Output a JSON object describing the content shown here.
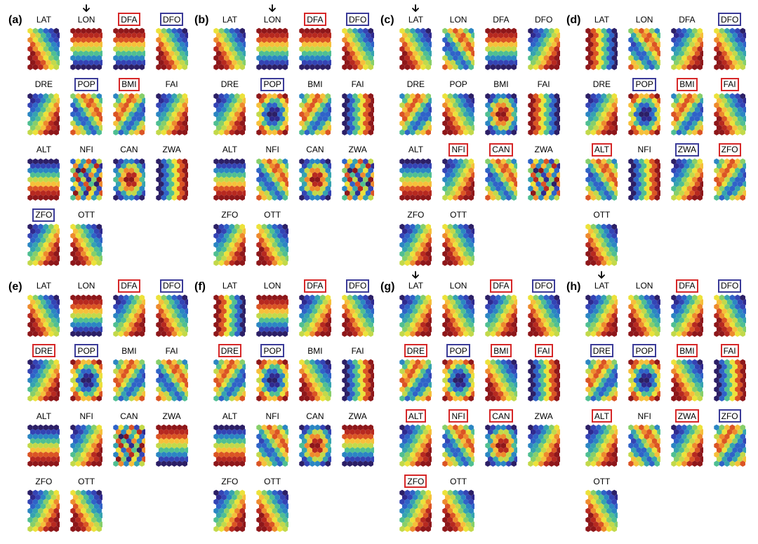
{
  "figure_type": "small-multiples-SOM-component-planes",
  "grid": {
    "panels_cols": 4,
    "panels_rows": 2,
    "cells_cols": 4,
    "cells_rows": 4
  },
  "hex_grid": {
    "cols": 6,
    "rows": 9,
    "hex_radius": 4.3,
    "dx": 7.45,
    "dy": 6.45,
    "odd_row_offset": 3.72
  },
  "palette": [
    "#2c1f66",
    "#2f2a8f",
    "#3444b5",
    "#2f63c8",
    "#2b86c3",
    "#35a3b0",
    "#4fbf92",
    "#86cf6a",
    "#c2d94a",
    "#ece23a",
    "#f6c03a",
    "#ee8a2d",
    "#db5424",
    "#b72920",
    "#8e171a"
  ],
  "background_color": "#ffffff",
  "label_fontsize": 12,
  "panel_label_fontsize": 16,
  "box_colors": {
    "red": "#d62728",
    "blue": "#3b3b98"
  },
  "var_names": [
    "LAT",
    "LON",
    "DFA",
    "DFO",
    "DRE",
    "POP",
    "BMI",
    "FAI",
    "ALT",
    "NFI",
    "CAN",
    "ZWA",
    "ZFO",
    "OTT"
  ],
  "patterns": {
    "diag_lr": [
      0,
      2,
      3,
      5,
      7,
      9,
      1,
      2,
      4,
      6,
      8,
      10,
      2,
      3,
      5,
      7,
      9,
      11,
      3,
      4,
      6,
      8,
      10,
      12,
      4,
      5,
      7,
      9,
      11,
      13,
      5,
      6,
      8,
      10,
      12,
      14,
      6,
      7,
      9,
      11,
      13,
      14,
      7,
      8,
      10,
      12,
      13,
      14,
      8,
      9,
      11,
      13,
      14,
      14
    ],
    "diag_rl": [
      9,
      7,
      5,
      3,
      2,
      0,
      10,
      8,
      6,
      4,
      2,
      1,
      11,
      9,
      7,
      5,
      3,
      2,
      12,
      10,
      8,
      6,
      4,
      3,
      13,
      11,
      9,
      7,
      5,
      4,
      14,
      12,
      10,
      8,
      6,
      5,
      14,
      13,
      11,
      9,
      7,
      6,
      14,
      13,
      12,
      10,
      8,
      7,
      14,
      14,
      13,
      11,
      9,
      8
    ],
    "vert_lr": [
      0,
      3,
      6,
      9,
      12,
      14,
      0,
      3,
      6,
      9,
      12,
      14,
      0,
      3,
      6,
      9,
      12,
      14,
      0,
      3,
      6,
      9,
      12,
      14,
      0,
      3,
      6,
      9,
      12,
      14,
      0,
      3,
      6,
      9,
      12,
      14,
      0,
      3,
      6,
      9,
      12,
      14,
      0,
      3,
      6,
      9,
      12,
      14,
      0,
      3,
      6,
      9,
      12,
      14
    ],
    "vert_rl": [
      14,
      12,
      9,
      6,
      3,
      0,
      14,
      12,
      9,
      6,
      3,
      0,
      14,
      12,
      9,
      6,
      3,
      0,
      14,
      12,
      9,
      6,
      3,
      0,
      14,
      12,
      9,
      6,
      3,
      0,
      14,
      12,
      9,
      6,
      3,
      0,
      14,
      12,
      9,
      6,
      3,
      0,
      14,
      12,
      9,
      6,
      3,
      0,
      14,
      12,
      9,
      6,
      3,
      0
    ],
    "horiz_tb": [
      0,
      0,
      0,
      0,
      0,
      0,
      2,
      2,
      2,
      2,
      2,
      2,
      4,
      4,
      4,
      4,
      4,
      4,
      6,
      6,
      6,
      6,
      6,
      6,
      8,
      8,
      8,
      8,
      8,
      8,
      10,
      10,
      10,
      10,
      10,
      10,
      12,
      12,
      12,
      12,
      12,
      12,
      13,
      13,
      13,
      13,
      13,
      13,
      14,
      14,
      14,
      14,
      14,
      14
    ],
    "horiz_bt": [
      14,
      14,
      14,
      14,
      14,
      14,
      13,
      13,
      13,
      13,
      13,
      13,
      12,
      12,
      12,
      12,
      12,
      12,
      10,
      10,
      10,
      10,
      10,
      10,
      8,
      8,
      8,
      8,
      8,
      8,
      6,
      6,
      6,
      6,
      6,
      6,
      4,
      4,
      4,
      4,
      4,
      4,
      2,
      2,
      2,
      2,
      2,
      2,
      0,
      0,
      0,
      0,
      0,
      0
    ],
    "center_hi": [
      0,
      2,
      4,
      4,
      2,
      0,
      2,
      5,
      8,
      8,
      5,
      2,
      4,
      8,
      11,
      11,
      8,
      4,
      5,
      10,
      13,
      13,
      10,
      5,
      6,
      11,
      14,
      14,
      11,
      6,
      5,
      10,
      13,
      13,
      10,
      5,
      4,
      8,
      11,
      11,
      8,
      4,
      2,
      5,
      8,
      8,
      5,
      2,
      0,
      2,
      4,
      4,
      2,
      0
    ],
    "center_lo": [
      14,
      12,
      10,
      10,
      12,
      14,
      12,
      9,
      6,
      6,
      9,
      12,
      10,
      6,
      3,
      3,
      6,
      10,
      9,
      4,
      1,
      1,
      4,
      9,
      8,
      3,
      0,
      0,
      3,
      8,
      9,
      4,
      1,
      1,
      4,
      9,
      10,
      6,
      3,
      3,
      6,
      10,
      12,
      9,
      6,
      6,
      9,
      12,
      14,
      12,
      10,
      10,
      12,
      14
    ],
    "wave_a": [
      7,
      10,
      12,
      10,
      7,
      4,
      5,
      8,
      11,
      12,
      9,
      6,
      3,
      6,
      9,
      12,
      11,
      8,
      2,
      4,
      7,
      10,
      12,
      10,
      3,
      3,
      5,
      8,
      11,
      12,
      5,
      3,
      3,
      6,
      9,
      12,
      8,
      5,
      3,
      4,
      7,
      10,
      10,
      8,
      5,
      3,
      5,
      8,
      12,
      10,
      8,
      5,
      3,
      6
    ],
    "wave_b": [
      4,
      7,
      10,
      12,
      10,
      7,
      6,
      9,
      12,
      11,
      8,
      5,
      8,
      11,
      12,
      9,
      6,
      3,
      10,
      12,
      10,
      7,
      4,
      2,
      12,
      11,
      8,
      5,
      3,
      3,
      12,
      9,
      6,
      3,
      3,
      5,
      10,
      7,
      4,
      3,
      5,
      8,
      8,
      5,
      3,
      5,
      8,
      10,
      6,
      3,
      5,
      8,
      10,
      12
    ],
    "speckle": [
      3,
      9,
      5,
      12,
      2,
      8,
      11,
      4,
      10,
      6,
      13,
      1,
      7,
      0,
      14,
      5,
      9,
      3,
      12,
      6,
      2,
      11,
      4,
      10,
      5,
      13,
      8,
      1,
      7,
      14,
      9,
      3,
      12,
      6,
      0,
      11,
      4,
      10,
      5,
      13,
      8,
      2,
      14,
      7,
      1,
      9,
      3,
      12,
      6,
      11,
      4,
      10,
      5,
      8
    ]
  },
  "panels": [
    {
      "id": "a",
      "label": "(a)",
      "arrows": [
        {
          "type": "down",
          "target": "LON"
        }
      ],
      "cells": [
        {
          "name": "LAT",
          "pattern": "diag_rl"
        },
        {
          "name": "LON",
          "pattern": "horiz_bt"
        },
        {
          "name": "DFA",
          "pattern": "horiz_bt",
          "box": "red"
        },
        {
          "name": "DFO",
          "pattern": "diag_rl",
          "box": "blue"
        },
        {
          "name": "DRE",
          "pattern": "diag_lr"
        },
        {
          "name": "POP",
          "pattern": "wave_a",
          "box": "blue"
        },
        {
          "name": "BMI",
          "pattern": "wave_b",
          "box": "red"
        },
        {
          "name": "FAI",
          "pattern": "diag_lr"
        },
        {
          "name": "ALT",
          "pattern": "horiz_tb"
        },
        {
          "name": "NFI",
          "pattern": "speckle"
        },
        {
          "name": "CAN",
          "pattern": "center_hi"
        },
        {
          "name": "ZWA",
          "pattern": "vert_lr"
        },
        {
          "name": "ZFO",
          "pattern": "diag_lr",
          "box": "blue"
        },
        {
          "name": "OTT",
          "pattern": "diag_rl"
        }
      ]
    },
    {
      "id": "b",
      "label": "(b)",
      "arrows": [
        {
          "type": "down",
          "target": "LON"
        }
      ],
      "cells": [
        {
          "name": "LAT",
          "pattern": "diag_rl"
        },
        {
          "name": "LON",
          "pattern": "horiz_bt"
        },
        {
          "name": "DFA",
          "pattern": "horiz_bt",
          "box": "red"
        },
        {
          "name": "DFO",
          "pattern": "diag_rl",
          "box": "blue"
        },
        {
          "name": "DRE",
          "pattern": "diag_lr"
        },
        {
          "name": "POP",
          "pattern": "center_lo",
          "box": "blue"
        },
        {
          "name": "BMI",
          "pattern": "wave_b"
        },
        {
          "name": "FAI",
          "pattern": "vert_lr"
        },
        {
          "name": "ALT",
          "pattern": "horiz_tb"
        },
        {
          "name": "NFI",
          "pattern": "wave_a"
        },
        {
          "name": "CAN",
          "pattern": "center_hi"
        },
        {
          "name": "ZWA",
          "pattern": "speckle"
        },
        {
          "name": "ZFO",
          "pattern": "diag_lr"
        },
        {
          "name": "OTT",
          "pattern": "diag_rl"
        }
      ]
    },
    {
      "id": "c",
      "label": "(c)",
      "arrows": [
        {
          "type": "down",
          "target": "LAT"
        }
      ],
      "cells": [
        {
          "name": "LAT",
          "pattern": "diag_rl"
        },
        {
          "name": "LON",
          "pattern": "wave_a"
        },
        {
          "name": "DFA",
          "pattern": "horiz_bt"
        },
        {
          "name": "DFO",
          "pattern": "diag_lr"
        },
        {
          "name": "DRE",
          "pattern": "wave_b"
        },
        {
          "name": "POP",
          "pattern": "diag_rl"
        },
        {
          "name": "BMI",
          "pattern": "center_hi"
        },
        {
          "name": "FAI",
          "pattern": "vert_rl"
        },
        {
          "name": "ALT",
          "pattern": "horiz_tb"
        },
        {
          "name": "NFI",
          "pattern": "diag_lr",
          "box": "red"
        },
        {
          "name": "CAN",
          "pattern": "wave_a",
          "box": "red"
        },
        {
          "name": "ZWA",
          "pattern": "speckle"
        },
        {
          "name": "ZFO",
          "pattern": "diag_lr"
        },
        {
          "name": "OTT",
          "pattern": "diag_rl"
        }
      ]
    },
    {
      "id": "d",
      "label": "(d)",
      "arrows": [],
      "cells": [
        {
          "name": "LAT",
          "pattern": "vert_rl"
        },
        {
          "name": "LON",
          "pattern": "wave_a"
        },
        {
          "name": "DFA",
          "pattern": "diag_lr"
        },
        {
          "name": "DFO",
          "pattern": "diag_rl",
          "box": "blue"
        },
        {
          "name": "DRE",
          "pattern": "diag_lr"
        },
        {
          "name": "POP",
          "pattern": "center_lo",
          "box": "blue"
        },
        {
          "name": "BMI",
          "pattern": "wave_b",
          "box": "red"
        },
        {
          "name": "FAI",
          "pattern": "diag_rl",
          "box": "red"
        },
        {
          "name": "ALT",
          "pattern": "wave_a",
          "box": "red"
        },
        {
          "name": "NFI",
          "pattern": "vert_lr"
        },
        {
          "name": "ZWA",
          "pattern": "diag_lr",
          "box": "blue"
        },
        {
          "name": "ZFO",
          "pattern": "wave_b",
          "box": "red"
        },
        {
          "name": "OTT",
          "pattern": "diag_rl"
        }
      ]
    },
    {
      "id": "e",
      "label": "(e)",
      "arrows": [],
      "cells": [
        {
          "name": "LAT",
          "pattern": "diag_rl"
        },
        {
          "name": "LON",
          "pattern": "horiz_bt"
        },
        {
          "name": "DFA",
          "pattern": "diag_lr",
          "box": "red"
        },
        {
          "name": "DFO",
          "pattern": "diag_rl",
          "box": "blue"
        },
        {
          "name": "DRE",
          "pattern": "diag_lr",
          "box": "red"
        },
        {
          "name": "POP",
          "pattern": "center_lo",
          "box": "blue"
        },
        {
          "name": "BMI",
          "pattern": "wave_b"
        },
        {
          "name": "FAI",
          "pattern": "wave_a"
        },
        {
          "name": "ALT",
          "pattern": "horiz_tb"
        },
        {
          "name": "NFI",
          "pattern": "diag_lr"
        },
        {
          "name": "CAN",
          "pattern": "speckle"
        },
        {
          "name": "ZWA",
          "pattern": "horiz_bt"
        },
        {
          "name": "ZFO",
          "pattern": "diag_lr"
        },
        {
          "name": "OTT",
          "pattern": "diag_rl"
        }
      ]
    },
    {
      "id": "f",
      "label": "(f)",
      "arrows": [],
      "cells": [
        {
          "name": "LAT",
          "pattern": "vert_rl"
        },
        {
          "name": "LON",
          "pattern": "horiz_bt"
        },
        {
          "name": "DFA",
          "pattern": "diag_lr",
          "box": "red"
        },
        {
          "name": "DFO",
          "pattern": "diag_rl",
          "box": "blue"
        },
        {
          "name": "DRE",
          "pattern": "wave_b",
          "box": "red"
        },
        {
          "name": "POP",
          "pattern": "center_lo",
          "box": "blue"
        },
        {
          "name": "BMI",
          "pattern": "diag_rl"
        },
        {
          "name": "FAI",
          "pattern": "vert_lr"
        },
        {
          "name": "ALT",
          "pattern": "horiz_tb"
        },
        {
          "name": "NFI",
          "pattern": "wave_a"
        },
        {
          "name": "CAN",
          "pattern": "center_hi"
        },
        {
          "name": "ZWA",
          "pattern": "horiz_bt"
        },
        {
          "name": "ZFO",
          "pattern": "diag_lr"
        },
        {
          "name": "OTT",
          "pattern": "diag_rl"
        }
      ]
    },
    {
      "id": "g",
      "label": "(g)",
      "arrows": [
        {
          "type": "down",
          "target": "LAT"
        }
      ],
      "cells": [
        {
          "name": "LAT",
          "pattern": "diag_lr"
        },
        {
          "name": "LON",
          "pattern": "diag_rl"
        },
        {
          "name": "DFA",
          "pattern": "diag_lr",
          "box": "red"
        },
        {
          "name": "DFO",
          "pattern": "diag_rl",
          "box": "blue"
        },
        {
          "name": "DRE",
          "pattern": "wave_b",
          "box": "red"
        },
        {
          "name": "POP",
          "pattern": "center_lo",
          "box": "blue"
        },
        {
          "name": "BMI",
          "pattern": "diag_rl",
          "box": "red"
        },
        {
          "name": "FAI",
          "pattern": "vert_lr",
          "box": "red"
        },
        {
          "name": "ALT",
          "pattern": "diag_lr",
          "box": "red"
        },
        {
          "name": "NFI",
          "pattern": "wave_a",
          "box": "red"
        },
        {
          "name": "CAN",
          "pattern": "center_hi",
          "box": "red"
        },
        {
          "name": "ZWA",
          "pattern": "diag_lr"
        },
        {
          "name": "ZFO",
          "pattern": "diag_lr",
          "box": "red"
        },
        {
          "name": "OTT",
          "pattern": "diag_rl"
        }
      ]
    },
    {
      "id": "h",
      "label": "(h)",
      "arrows": [
        {
          "type": "down",
          "target": "LAT"
        }
      ],
      "cells": [
        {
          "name": "LAT",
          "pattern": "diag_lr"
        },
        {
          "name": "LON",
          "pattern": "diag_rl"
        },
        {
          "name": "DFA",
          "pattern": "diag_lr",
          "box": "red"
        },
        {
          "name": "DFO",
          "pattern": "diag_rl",
          "box": "blue"
        },
        {
          "name": "DRE",
          "pattern": "wave_b",
          "box": "blue"
        },
        {
          "name": "POP",
          "pattern": "center_lo",
          "box": "blue"
        },
        {
          "name": "BMI",
          "pattern": "diag_rl",
          "box": "red"
        },
        {
          "name": "FAI",
          "pattern": "vert_lr",
          "box": "red"
        },
        {
          "name": "ALT",
          "pattern": "diag_lr",
          "box": "red"
        },
        {
          "name": "NFI",
          "pattern": "wave_a"
        },
        {
          "name": "ZWA",
          "pattern": "diag_lr",
          "box": "red"
        },
        {
          "name": "ZFO",
          "pattern": "wave_b",
          "box": "blue"
        },
        {
          "name": "OTT",
          "pattern": "diag_rl"
        }
      ]
    }
  ]
}
